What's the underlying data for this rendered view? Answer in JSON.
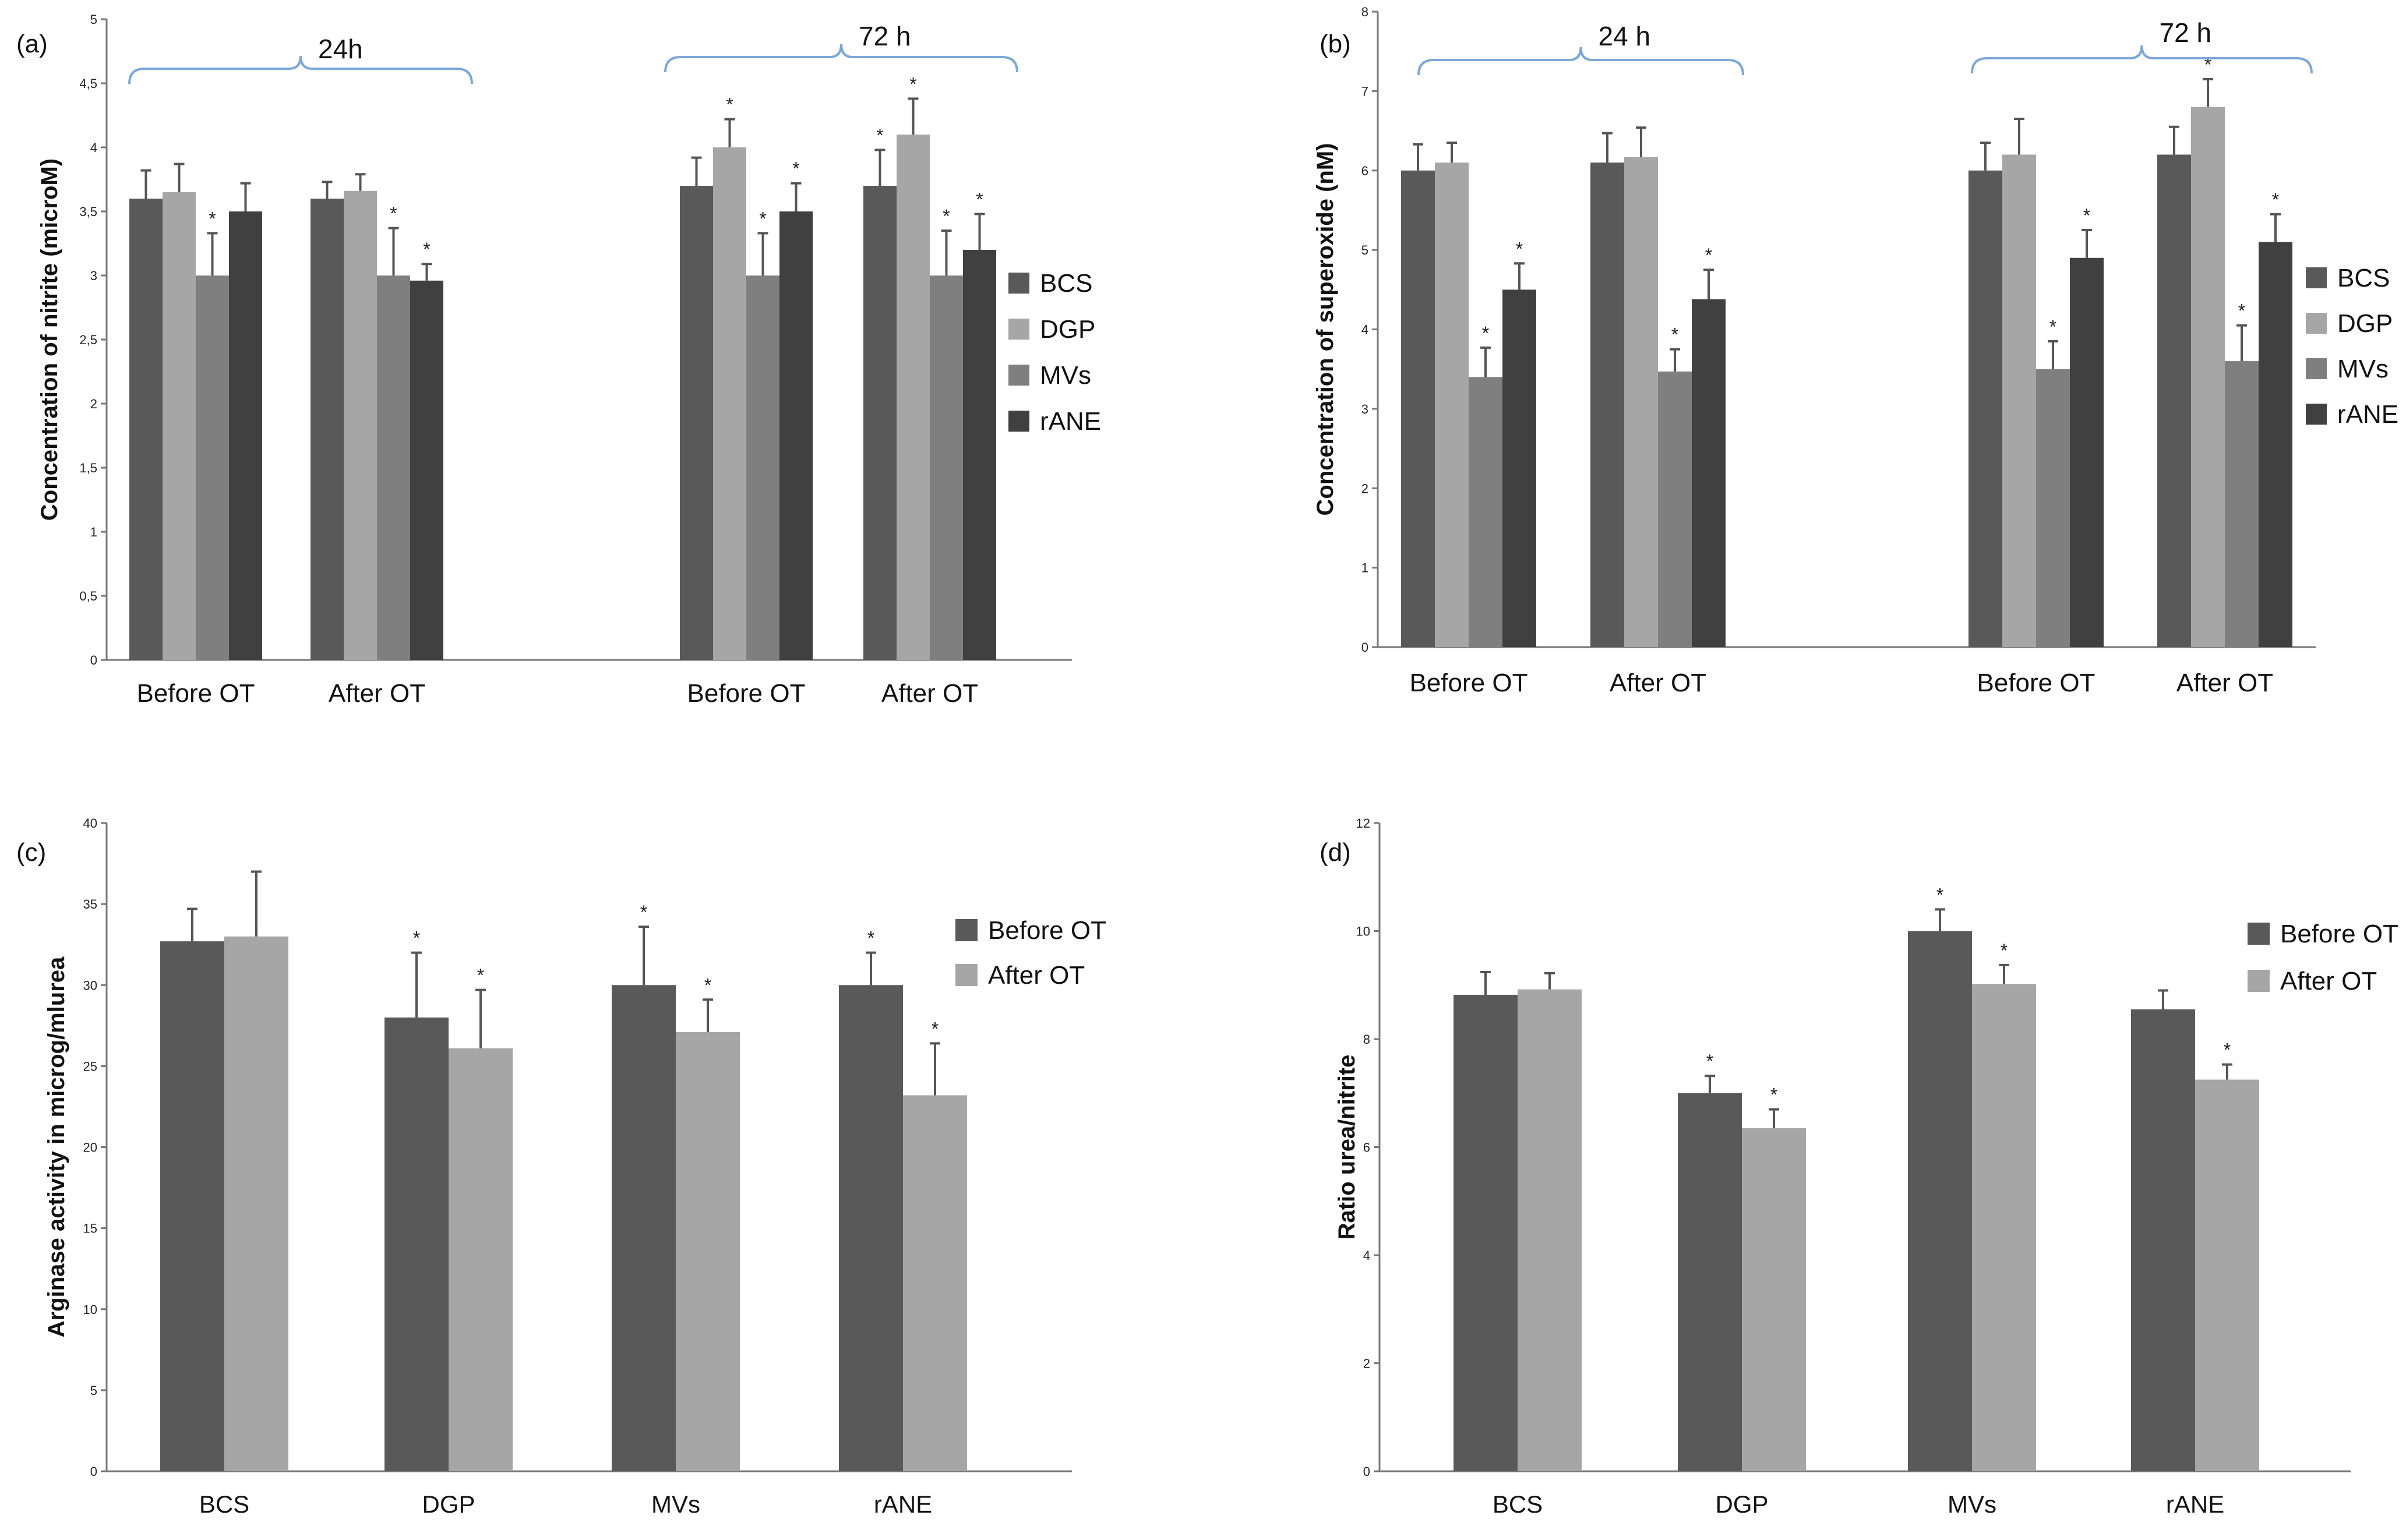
{
  "colors": {
    "BCS": "#595959",
    "DGP": "#a6a6a6",
    "MVs": "#7f7f7f",
    "rANE": "#404040",
    "Before OT": "#595959",
    "After OT": "#a6a6a6",
    "brace": "#7da7d9"
  },
  "chart_data": [
    {
      "panel": "(a)",
      "type": "bar",
      "ylabel": "Concentration of nitrite (microM)",
      "ylim": [
        0,
        5
      ],
      "yticks": [
        "0",
        "0,5",
        "1",
        "1,5",
        "2",
        "2,5",
        "3",
        "3,5",
        "4",
        "4,5",
        "5"
      ],
      "legend": [
        "BCS",
        "DGP",
        "MVs",
        "rANE"
      ],
      "brace_labels": [
        "24h",
        "72 h"
      ],
      "groups": [
        {
          "label": "Before OT",
          "values": [
            3.6,
            3.65,
            3.0,
            3.5
          ],
          "errors": [
            0.22,
            0.22,
            0.33,
            0.22
          ],
          "stars": [
            false,
            false,
            true,
            false
          ]
        },
        {
          "label": "After OT",
          "values": [
            3.6,
            3.66,
            3.0,
            2.96
          ],
          "errors": [
            0.13,
            0.13,
            0.37,
            0.13
          ],
          "stars": [
            false,
            false,
            true,
            true
          ]
        },
        {
          "label": "Before OT",
          "values": [
            3.7,
            4.0,
            3.0,
            3.5
          ],
          "errors": [
            0.22,
            0.22,
            0.33,
            0.22
          ],
          "stars": [
            false,
            true,
            true,
            true
          ]
        },
        {
          "label": "After OT",
          "values": [
            3.7,
            4.1,
            3.0,
            3.2
          ],
          "errors": [
            0.28,
            0.28,
            0.35,
            0.28
          ],
          "stars": [
            true,
            true,
            true,
            true
          ]
        }
      ]
    },
    {
      "panel": "(b)",
      "type": "bar",
      "ylabel": "Concentration of superoxide (nM)",
      "ylim": [
        0,
        8
      ],
      "yticks": [
        "0",
        "1",
        "2",
        "3",
        "4",
        "5",
        "6",
        "7",
        "8"
      ],
      "legend": [
        "BCS",
        "DGP",
        "MVs",
        "rANE"
      ],
      "brace_labels": [
        "24 h",
        "72 h"
      ],
      "groups": [
        {
          "label": "Before OT",
          "values": [
            6.0,
            6.1,
            3.4,
            4.5
          ],
          "errors": [
            0.33,
            0.25,
            0.37,
            0.33
          ],
          "stars": [
            false,
            false,
            true,
            true
          ]
        },
        {
          "label": "After OT",
          "values": [
            6.1,
            6.17,
            3.47,
            4.38
          ],
          "errors": [
            0.37,
            0.37,
            0.28,
            0.37
          ],
          "stars": [
            false,
            false,
            true,
            true
          ]
        },
        {
          "label": "Before OT",
          "values": [
            6.0,
            6.2,
            3.5,
            4.9
          ],
          "errors": [
            0.35,
            0.45,
            0.35,
            0.35
          ],
          "stars": [
            false,
            false,
            true,
            true
          ]
        },
        {
          "label": "After OT",
          "values": [
            6.2,
            6.8,
            3.6,
            5.1
          ],
          "errors": [
            0.35,
            0.35,
            0.45,
            0.35
          ],
          "stars": [
            false,
            true,
            true,
            true
          ]
        }
      ]
    },
    {
      "panel": "(c)",
      "type": "bar",
      "ylabel": "Arginase activity in microg/mlurea",
      "ylim": [
        0,
        40
      ],
      "yticks": [
        "0",
        "5",
        "10",
        "15",
        "20",
        "25",
        "30",
        "35",
        "40"
      ],
      "legend": [
        "Before OT",
        "After OT"
      ],
      "groups": [
        {
          "label": "BCS",
          "values": [
            32.7,
            33.0
          ],
          "errors": [
            2.0,
            4.0
          ],
          "stars": [
            false,
            false
          ]
        },
        {
          "label": "DGP",
          "values": [
            28.0,
            26.1
          ],
          "errors": [
            4.0,
            3.6
          ],
          "stars": [
            true,
            true
          ]
        },
        {
          "label": "MVs",
          "values": [
            30.0,
            27.1
          ],
          "errors": [
            3.6,
            2.0
          ],
          "stars": [
            true,
            true
          ]
        },
        {
          "label": "rANE",
          "values": [
            30.0,
            23.2
          ],
          "errors": [
            2.0,
            3.2
          ],
          "stars": [
            true,
            true
          ]
        }
      ]
    },
    {
      "panel": "(d)",
      "type": "bar",
      "ylabel": "Ratio urea/nitrite",
      "ylim": [
        0,
        12
      ],
      "yticks": [
        "0",
        "2",
        "4",
        "6",
        "8",
        "10",
        "12"
      ],
      "legend": [
        "Before OT",
        "After OT"
      ],
      "groups": [
        {
          "label": "BCS",
          "values": [
            8.82,
            8.92
          ],
          "errors": [
            0.42,
            0.3
          ],
          "stars": [
            false,
            false
          ]
        },
        {
          "label": "DGP",
          "values": [
            7.0,
            6.35
          ],
          "errors": [
            0.32,
            0.35
          ],
          "stars": [
            true,
            true
          ]
        },
        {
          "label": "MVs",
          "values": [
            10.0,
            9.02
          ],
          "errors": [
            0.4,
            0.35
          ],
          "stars": [
            true,
            true
          ]
        },
        {
          "label": "rANE",
          "values": [
            8.55,
            7.25
          ],
          "errors": [
            0.35,
            0.28
          ],
          "stars": [
            false,
            true
          ]
        }
      ]
    }
  ]
}
